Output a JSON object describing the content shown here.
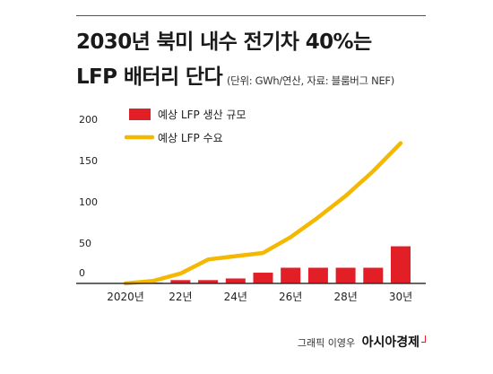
{
  "header": {
    "title_line1": "2030년 북미 내수 전기차 40%는",
    "title_line2": "LFP 배터리 단다",
    "subtitle": "(단위: GWh/연산, 자료: 블룸버그 NEF)"
  },
  "footer": {
    "credit": "그래픽 이영우",
    "brand": "아시아경제"
  },
  "colors": {
    "bar": "#e21e26",
    "line": "#f5b800",
    "axis": "#333333",
    "text": "#222222"
  },
  "chart_data": {
    "type": "bar",
    "x": [
      2020,
      2021,
      2022,
      2023,
      2024,
      2025,
      2026,
      2027,
      2028,
      2029,
      2030
    ],
    "xtick_values": [
      2020,
      2022,
      2024,
      2026,
      2028,
      2030
    ],
    "xtick_labels": [
      "2020년",
      "22년",
      "24년",
      "26년",
      "28년",
      "30년"
    ],
    "ylim": [
      0,
      200
    ],
    "yticks": [
      0,
      50,
      100,
      150,
      200
    ],
    "ytick_labels": [
      "0",
      "50",
      "100",
      "150",
      "200"
    ],
    "series": [
      {
        "name": "예상 LFP 생산 규모",
        "type": "bar",
        "values": [
          0,
          1,
          4,
          4,
          6,
          13,
          19,
          19,
          19,
          19,
          45
        ]
      },
      {
        "name": "예상 LFP 수요",
        "type": "line",
        "values": [
          0,
          3,
          12,
          29,
          33,
          37,
          56,
          80,
          106,
          136,
          170
        ]
      }
    ],
    "legend_position": "top-left",
    "grid": false
  }
}
